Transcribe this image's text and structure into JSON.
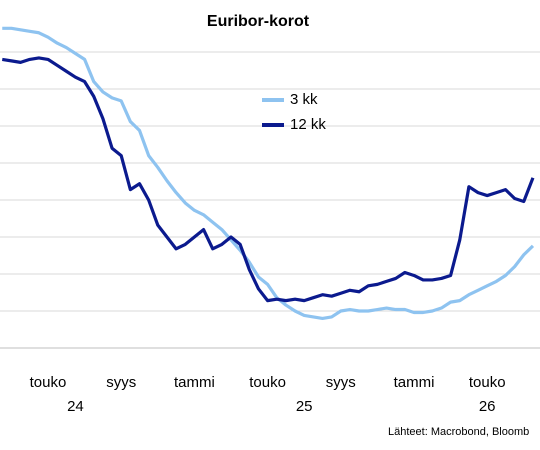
{
  "chart_data": {
    "type": "line",
    "title": "Euribor-korot",
    "categories": [
      null,
      null,
      null,
      null,
      null,
      "touko",
      null,
      null,
      null,
      null,
      null,
      null,
      null,
      "syys",
      null,
      null,
      null,
      null,
      null,
      null,
      null,
      "tammi",
      null,
      null,
      null,
      null,
      null,
      null,
      null,
      "touko",
      null,
      null,
      null,
      null,
      null,
      null,
      null,
      "syys",
      null,
      null,
      null,
      null,
      null,
      null,
      null,
      "tammi",
      null,
      null,
      null,
      null,
      null,
      null,
      null,
      "touko",
      null,
      null,
      null,
      null,
      null
    ],
    "year_labels": [
      null,
      null,
      null,
      null,
      null,
      null,
      null,
      null,
      "24",
      null,
      null,
      null,
      null,
      null,
      null,
      null,
      null,
      null,
      null,
      null,
      null,
      null,
      null,
      null,
      null,
      null,
      null,
      null,
      null,
      null,
      null,
      null,
      null,
      "25",
      null,
      null,
      null,
      null,
      null,
      null,
      null,
      null,
      null,
      null,
      null,
      null,
      null,
      null,
      null,
      null,
      null,
      null,
      null,
      "26",
      null,
      null,
      null,
      null,
      null
    ],
    "series": [
      {
        "name": "3 kk",
        "color": "#8ec3f0",
        "values": [
          3.91,
          3.91,
          3.9,
          3.89,
          3.88,
          3.85,
          3.81,
          3.78,
          3.74,
          3.7,
          3.55,
          3.48,
          3.44,
          3.42,
          3.28,
          3.22,
          3.05,
          2.97,
          2.88,
          2.8,
          2.73,
          2.68,
          2.65,
          2.6,
          2.55,
          2.48,
          2.41,
          2.33,
          2.23,
          2.18,
          2.09,
          2.04,
          2.0,
          1.97,
          1.96,
          1.95,
          1.96,
          2.0,
          2.01,
          2.0,
          2.0,
          2.01,
          2.02,
          2.01,
          2.01,
          1.99,
          1.99,
          2.0,
          2.02,
          2.06,
          2.07,
          2.11,
          2.14,
          2.17,
          2.2,
          2.24,
          2.3,
          2.38,
          2.44
        ]
      },
      {
        "name": "12 kk",
        "color": "#0b1a8e",
        "values": [
          3.7,
          3.69,
          3.68,
          3.7,
          3.71,
          3.7,
          3.66,
          3.62,
          3.58,
          3.55,
          3.45,
          3.3,
          3.1,
          3.05,
          2.82,
          2.86,
          2.75,
          2.58,
          2.5,
          2.42,
          2.45,
          2.5,
          2.55,
          2.42,
          2.45,
          2.5,
          2.45,
          2.28,
          2.15,
          2.07,
          2.08,
          2.07,
          2.08,
          2.07,
          2.09,
          2.11,
          2.1,
          2.12,
          2.14,
          2.13,
          2.17,
          2.18,
          2.2,
          2.22,
          2.26,
          2.24,
          2.21,
          2.21,
          2.22,
          2.24,
          2.48,
          2.84,
          2.8,
          2.78,
          2.8,
          2.82,
          2.76,
          2.74,
          2.9
        ]
      }
    ],
    "ylim": [
      1.75,
      4.0
    ],
    "yticks": [
      1.75,
      2.0,
      2.25,
      2.5,
      2.75,
      3.0,
      3.25,
      3.5,
      3.75
    ],
    "grid": true,
    "source": "Lähteet: Macrobond, Bloomb"
  }
}
